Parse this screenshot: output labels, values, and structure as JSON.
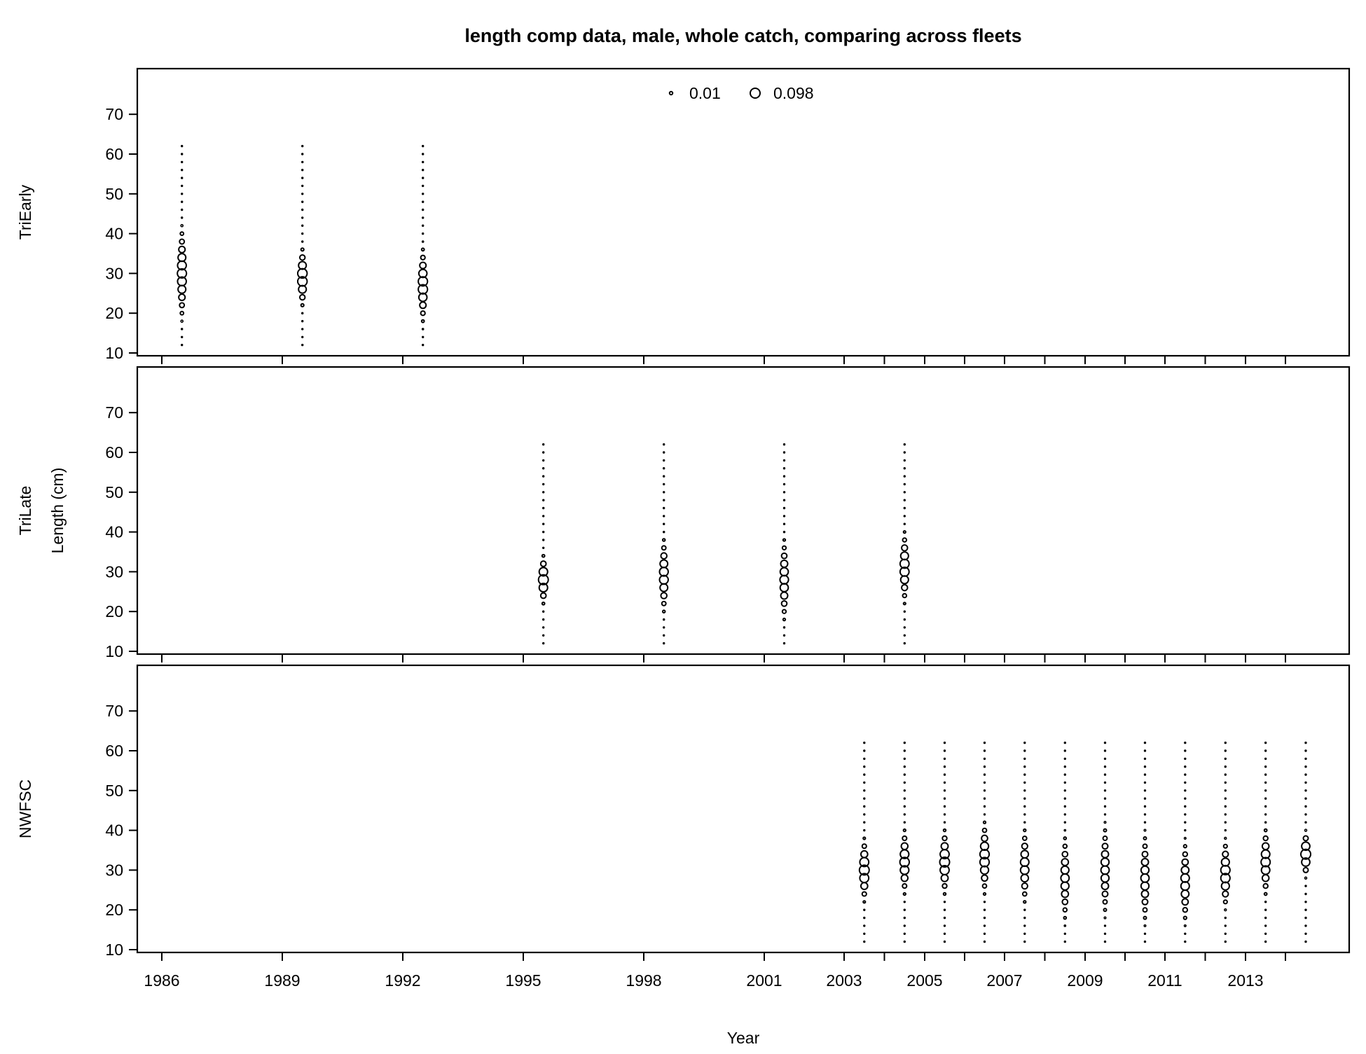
{
  "chart_data": {
    "type": "scatter",
    "subtype": "bubble",
    "title": "length comp data, male, whole catch, comparing across fleets",
    "xlabel": "Year",
    "ylabel": "Length (cm)",
    "xticks": [
      "1986",
      "1989",
      "1992",
      "1995",
      "1998",
      "2001",
      "2003",
      "2005",
      "2007",
      "2009",
      "2011",
      "2013"
    ],
    "yticks": [
      "10",
      "20",
      "30",
      "40",
      "50",
      "60",
      "70"
    ],
    "ylim": [
      10,
      80
    ],
    "length_bins": [
      12,
      14,
      16,
      18,
      20,
      22,
      24,
      26,
      28,
      30,
      32,
      34,
      36,
      38,
      40,
      42,
      44,
      46,
      48,
      50,
      52,
      54,
      56,
      58,
      60,
      62
    ],
    "legend": {
      "position": "top-center",
      "entries": [
        {
          "label": "0.01",
          "value": 0.01
        },
        {
          "label": "0.098",
          "value": 0.098
        }
      ]
    },
    "panels": [
      {
        "name": "TriEarly",
        "series": [
          {
            "x": 1986.5,
            "peak": 30,
            "spread": 5.0,
            "max": 0.085
          },
          {
            "x": 1989.5,
            "peak": 29,
            "spread": 3.2,
            "max": 0.095
          },
          {
            "x": 1992.5,
            "peak": 27,
            "spread": 4.0,
            "max": 0.09
          }
        ]
      },
      {
        "name": "TriLate",
        "series": [
          {
            "x": 1995.5,
            "peak": 28,
            "spread": 2.6,
            "max": 0.098
          },
          {
            "x": 1998.5,
            "peak": 29,
            "spread": 4.0,
            "max": 0.08
          },
          {
            "x": 2001.5,
            "peak": 28,
            "spread": 4.4,
            "max": 0.075
          },
          {
            "x": 2004.5,
            "peak": 31,
            "spread": 3.8,
            "max": 0.085
          }
        ]
      },
      {
        "name": "NWFSC",
        "series": [
          {
            "x": 2003.5,
            "peak": 30,
            "spread": 3.3,
            "max": 0.098
          },
          {
            "x": 2004.5,
            "peak": 32,
            "spread": 3.4,
            "max": 0.09
          },
          {
            "x": 2005.5,
            "peak": 32,
            "spread": 3.4,
            "max": 0.098
          },
          {
            "x": 2006.5,
            "peak": 33,
            "spread": 3.8,
            "max": 0.09
          },
          {
            "x": 2007.5,
            "peak": 31,
            "spread": 4.0,
            "max": 0.075
          },
          {
            "x": 2008.5,
            "peak": 28,
            "spread": 4.6,
            "max": 0.07
          },
          {
            "x": 2009.5,
            "peak": 30,
            "spread": 4.8,
            "max": 0.07
          },
          {
            "x": 2010.5,
            "peak": 28,
            "spread": 4.8,
            "max": 0.07
          },
          {
            "x": 2011.5,
            "peak": 27,
            "spread": 4.4,
            "max": 0.075
          },
          {
            "x": 2012.5,
            "peak": 29,
            "spread": 3.6,
            "max": 0.09
          },
          {
            "x": 2013.5,
            "peak": 32,
            "spread": 3.6,
            "max": 0.085
          },
          {
            "x": 2014.5,
            "peak": 34,
            "spread": 2.4,
            "max": 0.098
          }
        ]
      }
    ]
  }
}
